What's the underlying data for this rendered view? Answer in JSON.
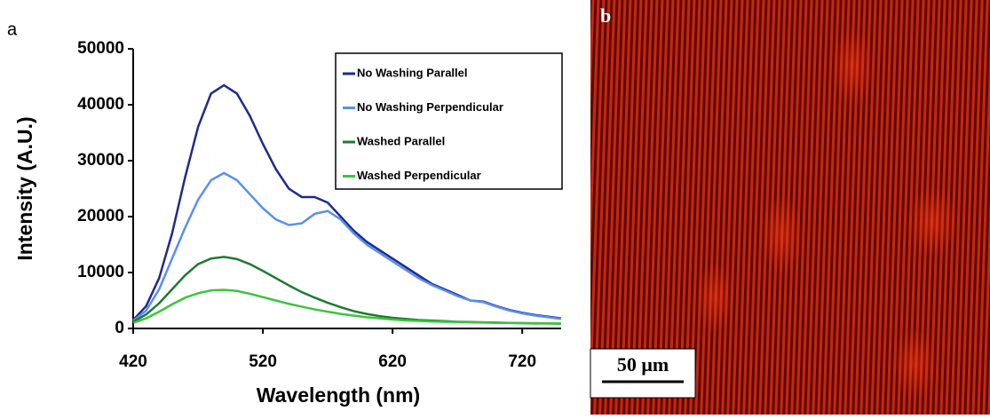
{
  "chart_data": {
    "type": "line",
    "xlabel": "Wavelength (nm)",
    "ylabel": "Intensity (A.U.)",
    "x": [
      420,
      430,
      440,
      450,
      460,
      470,
      480,
      490,
      500,
      510,
      520,
      530,
      540,
      550,
      560,
      570,
      580,
      590,
      600,
      610,
      620,
      630,
      640,
      650,
      660,
      670,
      680,
      690,
      700,
      710,
      720,
      730,
      740,
      750
    ],
    "series": [
      {
        "name": "No Washing Parallel",
        "color": "#1f2a8c",
        "values": [
          1500,
          4000,
          9000,
          17000,
          27000,
          36000,
          42000,
          43500,
          42000,
          38000,
          33000,
          28500,
          25000,
          23500,
          23500,
          22500,
          20000,
          17500,
          15500,
          14000,
          12500,
          11000,
          9500,
          8000,
          7000,
          6000,
          5000,
          4800,
          4000,
          3300,
          2800,
          2400,
          2100,
          1800
        ]
      },
      {
        "name": "No Washing Perpendicular",
        "color": "#5a8ff0",
        "values": [
          1400,
          3200,
          7000,
          12500,
          18000,
          23000,
          26500,
          27800,
          26500,
          24000,
          21500,
          19500,
          18500,
          18800,
          20500,
          21000,
          19500,
          17000,
          15000,
          13500,
          12000,
          10500,
          9000,
          7800,
          6800,
          5800,
          5000,
          4700,
          3900,
          3200,
          2700,
          2300,
          2000,
          1700
        ]
      },
      {
        "name": "Washed Parallel",
        "color": "#1e7a32",
        "values": [
          1200,
          2500,
          4500,
          7000,
          9500,
          11500,
          12500,
          12800,
          12400,
          11500,
          10300,
          9000,
          7700,
          6500,
          5500,
          4600,
          3800,
          3100,
          2600,
          2200,
          1900,
          1700,
          1500,
          1400,
          1300,
          1200,
          1150,
          1100,
          1050,
          1000,
          950,
          900,
          900,
          850
        ]
      },
      {
        "name": "Washed Perpendicular",
        "color": "#3cc43c",
        "values": [
          1000,
          1800,
          3000,
          4300,
          5500,
          6300,
          6800,
          6900,
          6700,
          6200,
          5600,
          5000,
          4400,
          3900,
          3400,
          3000,
          2600,
          2300,
          2000,
          1800,
          1600,
          1450,
          1350,
          1250,
          1200,
          1150,
          1100,
          1050,
          1000,
          1000,
          950,
          950,
          900,
          900
        ]
      }
    ],
    "xlim": [
      420,
      750
    ],
    "xticks": [
      420,
      520,
      620,
      720
    ],
    "ylim": [
      0,
      50000
    ],
    "yticks": [
      0,
      10000,
      20000,
      30000,
      40000,
      50000
    ],
    "grid": false,
    "legend": "upper right"
  },
  "panels": [
    "a",
    "b"
  ],
  "scale_bar": "50 μm"
}
